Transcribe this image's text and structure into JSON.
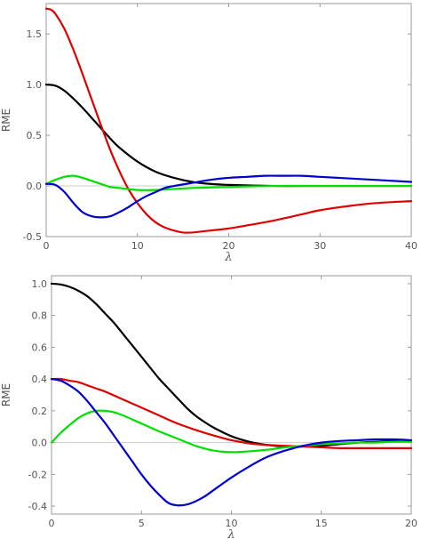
{
  "chart_data": [
    {
      "type": "line",
      "xlabel": "λ",
      "ylabel": "RME",
      "xlim": [
        0,
        40
      ],
      "ylim": [
        -0.5,
        1.8
      ],
      "xticks": [
        0,
        10,
        20,
        30,
        40
      ],
      "xtick_labels": [
        "0",
        "10",
        "20",
        "30",
        "40"
      ],
      "yticks": [
        -0.5,
        0.0,
        0.5,
        1.0,
        1.5
      ],
      "ytick_labels": [
        "-0.5",
        "0.0",
        "0.5",
        "1.0",
        "1.5"
      ],
      "grid": false,
      "zero_line": true,
      "series": [
        {
          "color": "#000000",
          "x": [
            0,
            1,
            2,
            3,
            4,
            5,
            6,
            7,
            8,
            10,
            12,
            14,
            16,
            18,
            20,
            25,
            30,
            35,
            40
          ],
          "y": [
            1.0,
            0.99,
            0.94,
            0.86,
            0.77,
            0.67,
            0.57,
            0.47,
            0.38,
            0.24,
            0.14,
            0.08,
            0.04,
            0.02,
            0.01,
            0.0,
            0.0,
            0.0,
            0.0
          ]
        },
        {
          "color": "#e00000",
          "x": [
            0,
            0.5,
            1,
            2,
            3,
            4,
            5,
            6,
            7,
            8,
            9,
            10,
            11,
            12,
            13,
            14,
            15,
            16,
            17,
            18,
            20,
            22,
            25,
            28,
            30,
            33,
            36,
            40
          ],
          "y": [
            1.75,
            1.74,
            1.7,
            1.55,
            1.34,
            1.1,
            0.85,
            0.6,
            0.36,
            0.15,
            -0.03,
            -0.17,
            -0.28,
            -0.36,
            -0.41,
            -0.44,
            -0.46,
            -0.46,
            -0.45,
            -0.44,
            -0.42,
            -0.39,
            -0.34,
            -0.28,
            -0.24,
            -0.2,
            -0.17,
            -0.15
          ]
        },
        {
          "color": "#00e000",
          "x": [
            0,
            1,
            2,
            3,
            4,
            5,
            6,
            7,
            8,
            10,
            12,
            14,
            16,
            20,
            25,
            30,
            35,
            40
          ],
          "y": [
            0.02,
            0.06,
            0.09,
            0.1,
            0.08,
            0.05,
            0.02,
            -0.01,
            -0.02,
            -0.04,
            -0.04,
            -0.03,
            -0.02,
            -0.01,
            0.0,
            0.0,
            0.0,
            0.0
          ]
        },
        {
          "color": "#0000d0",
          "x": [
            0,
            1,
            2,
            3,
            4,
            5,
            6,
            7,
            8,
            9,
            10,
            11,
            12,
            13,
            14,
            16,
            18,
            20,
            22,
            24,
            26,
            28,
            30,
            34,
            40
          ],
          "y": [
            0.02,
            0.01,
            -0.06,
            -0.17,
            -0.26,
            -0.3,
            -0.31,
            -0.3,
            -0.26,
            -0.21,
            -0.15,
            -0.1,
            -0.06,
            -0.02,
            0.0,
            0.03,
            0.06,
            0.08,
            0.09,
            0.1,
            0.1,
            0.1,
            0.09,
            0.07,
            0.04
          ]
        }
      ]
    },
    {
      "type": "line",
      "xlabel": "λ",
      "ylabel": "RME",
      "xlim": [
        0,
        20
      ],
      "ylim": [
        -0.45,
        1.05
      ],
      "xticks": [
        0,
        5,
        10,
        15,
        20
      ],
      "xtick_labels": [
        "0",
        "5",
        "10",
        "15",
        "20"
      ],
      "yticks": [
        -0.4,
        -0.2,
        0.0,
        0.2,
        0.4,
        0.6,
        0.8,
        1.0
      ],
      "ytick_labels": [
        "-0.4",
        "-0.2",
        "0.0",
        "0.2",
        "0.4",
        "0.6",
        "0.8",
        "1.0"
      ],
      "grid": false,
      "zero_line": true,
      "series": [
        {
          "color": "#000000",
          "x": [
            0,
            0.5,
            1,
            1.5,
            2,
            2.5,
            3,
            3.5,
            4,
            4.5,
            5,
            5.5,
            6,
            6.5,
            7,
            7.5,
            8,
            8.5,
            9,
            10,
            11,
            12,
            13,
            14,
            15,
            16,
            17,
            18,
            19,
            20
          ],
          "y": [
            1.0,
            0.995,
            0.98,
            0.955,
            0.92,
            0.87,
            0.81,
            0.75,
            0.68,
            0.61,
            0.54,
            0.47,
            0.4,
            0.34,
            0.28,
            0.22,
            0.17,
            0.13,
            0.095,
            0.04,
            0.005,
            -0.015,
            -0.025,
            -0.025,
            -0.02,
            -0.01,
            0.0,
            0.005,
            0.01,
            0.01
          ]
        },
        {
          "color": "#e00000",
          "x": [
            0,
            0.5,
            1,
            1.5,
            2,
            2.5,
            3,
            4,
            5,
            6,
            7,
            8,
            9,
            10,
            11,
            12,
            13,
            14,
            15,
            16,
            17,
            18,
            19,
            20
          ],
          "y": [
            0.4,
            0.4,
            0.39,
            0.38,
            0.36,
            0.34,
            0.32,
            0.27,
            0.22,
            0.17,
            0.12,
            0.08,
            0.045,
            0.015,
            -0.005,
            -0.015,
            -0.02,
            -0.025,
            -0.03,
            -0.035,
            -0.035,
            -0.035,
            -0.035,
            -0.035
          ]
        },
        {
          "color": "#00e000",
          "x": [
            0,
            0.5,
            1,
            1.5,
            2,
            2.5,
            3,
            3.5,
            4,
            5,
            6,
            7,
            8,
            9,
            10,
            11,
            12,
            13,
            14,
            15,
            16,
            17,
            18,
            19,
            20
          ],
          "y": [
            0.0,
            0.06,
            0.11,
            0.155,
            0.185,
            0.2,
            0.2,
            0.19,
            0.17,
            0.12,
            0.07,
            0.025,
            -0.02,
            -0.05,
            -0.06,
            -0.055,
            -0.045,
            -0.03,
            -0.02,
            -0.01,
            -0.005,
            0.0,
            0.0,
            0.005,
            0.005
          ]
        },
        {
          "color": "#0000d0",
          "x": [
            0,
            0.5,
            1,
            1.5,
            2,
            2.5,
            3,
            3.5,
            4,
            4.5,
            5,
            5.5,
            6,
            6.5,
            7,
            7.5,
            8,
            8.5,
            9,
            10,
            11,
            12,
            13,
            14,
            15,
            16,
            17,
            18,
            19,
            20
          ],
          "y": [
            0.4,
            0.39,
            0.36,
            0.32,
            0.26,
            0.19,
            0.12,
            0.04,
            -0.04,
            -0.12,
            -0.2,
            -0.27,
            -0.33,
            -0.38,
            -0.395,
            -0.39,
            -0.37,
            -0.34,
            -0.3,
            -0.22,
            -0.15,
            -0.09,
            -0.05,
            -0.02,
            0.0,
            0.01,
            0.015,
            0.02,
            0.02,
            0.015
          ]
        }
      ]
    }
  ]
}
